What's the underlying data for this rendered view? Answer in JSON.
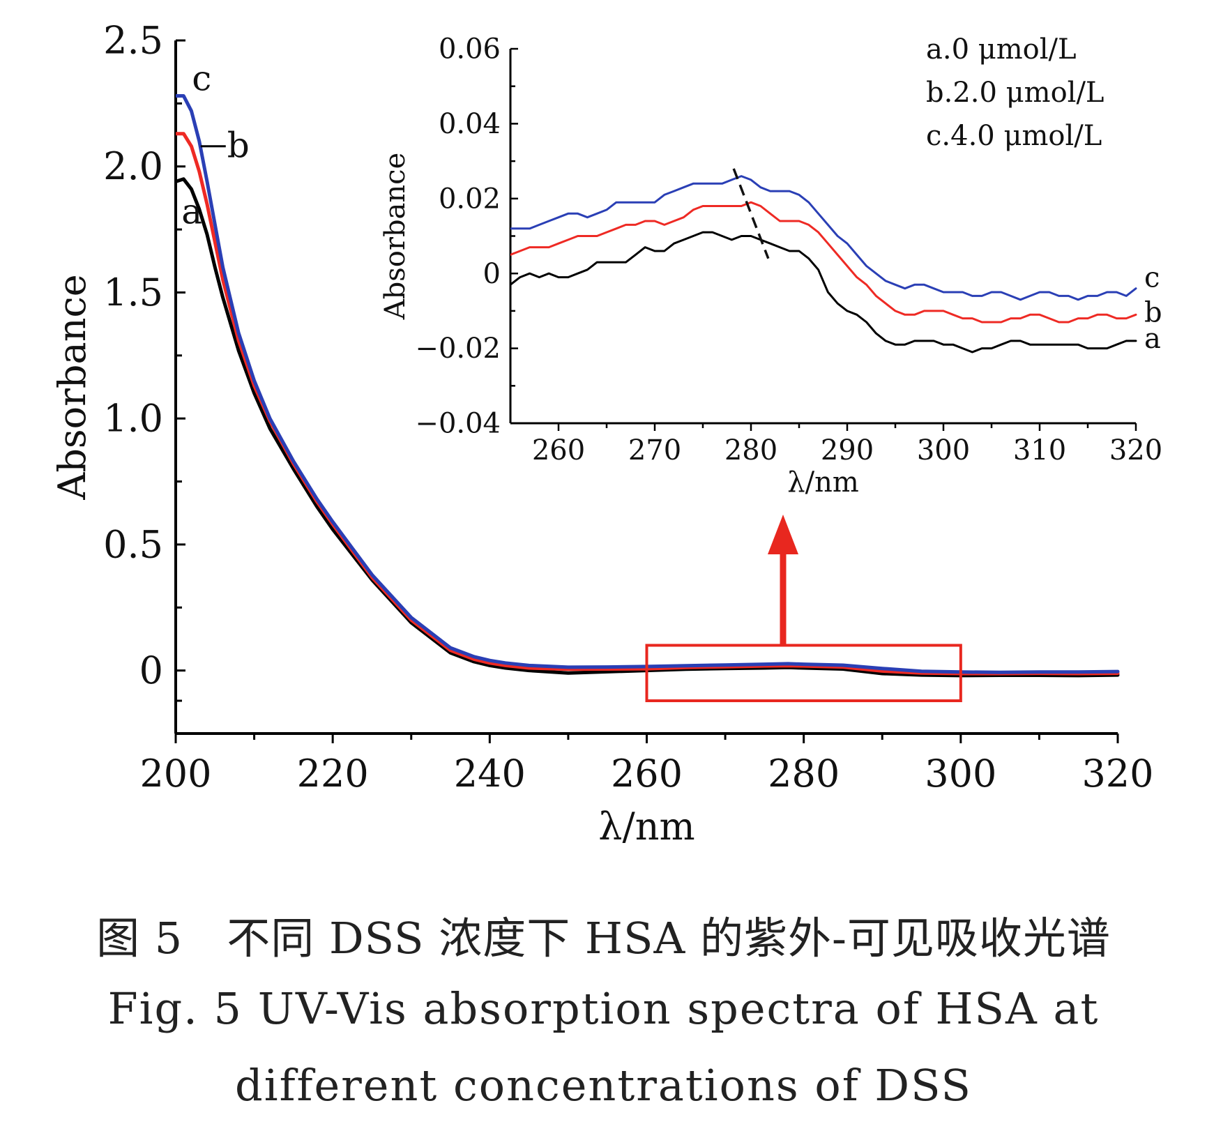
{
  "caption": {
    "cn": "图 5　不同 DSS 浓度下 HSA 的紫外-可见吸收光谱",
    "en_line1": "Fig. 5  UV-Vis absorption spectra of HSA at",
    "en_line2": "different concentrations of DSS"
  },
  "colors": {
    "a": "#000000",
    "b": "#ee2a24",
    "c": "#2a3fb5",
    "highlight": "#e8271f"
  },
  "chart_data": [
    {
      "id": "main",
      "type": "line",
      "xlabel": "λ/nm",
      "ylabel": "Absorbance",
      "xlim": [
        200,
        320
      ],
      "ylim": [
        -0.25,
        2.5
      ],
      "xticks": [
        200,
        220,
        240,
        260,
        280,
        300,
        320
      ],
      "yticks": [
        0,
        0.5,
        1.0,
        1.5,
        2.0,
        2.5
      ],
      "ytick_labels": [
        "0",
        "0.5",
        "1.0",
        "1.5",
        "2.0",
        "2.5"
      ],
      "highlight_box": {
        "x": [
          260,
          300
        ],
        "y": [
          -0.12,
          0.1
        ]
      },
      "series": [
        {
          "name": "a",
          "x": [
            200,
            201,
            202,
            203,
            204,
            205,
            206,
            208,
            210,
            212,
            215,
            218,
            220,
            225,
            230,
            235,
            238,
            240,
            242,
            245,
            250,
            255,
            260,
            265,
            270,
            275,
            278,
            280,
            285,
            290,
            295,
            300,
            305,
            310,
            315,
            320
          ],
          "y": [
            1.94,
            1.95,
            1.91,
            1.83,
            1.73,
            1.6,
            1.48,
            1.27,
            1.1,
            0.96,
            0.8,
            0.65,
            0.56,
            0.36,
            0.19,
            0.07,
            0.035,
            0.02,
            0.01,
            0.0,
            -0.01,
            -0.005,
            0.0,
            0.005,
            0.008,
            0.01,
            0.012,
            0.01,
            0.006,
            -0.012,
            -0.018,
            -0.02,
            -0.019,
            -0.019,
            -0.02,
            -0.018
          ]
        },
        {
          "name": "b",
          "x": [
            200,
            201,
            202,
            203,
            204,
            205,
            206,
            208,
            210,
            212,
            215,
            218,
            220,
            225,
            230,
            235,
            238,
            240,
            242,
            245,
            250,
            255,
            260,
            265,
            270,
            275,
            278,
            280,
            285,
            290,
            295,
            300,
            305,
            310,
            315,
            320
          ],
          "y": [
            2.13,
            2.13,
            2.08,
            1.98,
            1.85,
            1.7,
            1.55,
            1.31,
            1.13,
            0.99,
            0.82,
            0.67,
            0.58,
            0.37,
            0.2,
            0.08,
            0.045,
            0.03,
            0.02,
            0.01,
            0.005,
            0.006,
            0.007,
            0.012,
            0.015,
            0.018,
            0.019,
            0.018,
            0.014,
            -0.002,
            -0.01,
            -0.012,
            -0.012,
            -0.011,
            -0.012,
            -0.011
          ]
        },
        {
          "name": "c",
          "x": [
            200,
            201,
            202,
            203,
            204,
            205,
            206,
            208,
            210,
            212,
            215,
            218,
            220,
            225,
            230,
            235,
            238,
            240,
            242,
            245,
            250,
            255,
            260,
            265,
            270,
            275,
            278,
            280,
            285,
            290,
            295,
            300,
            305,
            310,
            315,
            320
          ],
          "y": [
            2.28,
            2.28,
            2.22,
            2.1,
            1.94,
            1.77,
            1.6,
            1.34,
            1.15,
            1.0,
            0.83,
            0.68,
            0.59,
            0.38,
            0.21,
            0.09,
            0.055,
            0.04,
            0.03,
            0.02,
            0.013,
            0.014,
            0.016,
            0.019,
            0.022,
            0.025,
            0.027,
            0.025,
            0.021,
            0.008,
            -0.003,
            -0.006,
            -0.007,
            -0.006,
            -0.006,
            -0.004
          ]
        }
      ],
      "annotations": [
        {
          "text": "c",
          "target": "c",
          "x": 201,
          "y": 2.28
        },
        {
          "text": "b",
          "target": "b",
          "x": 203,
          "y": 2.13
        },
        {
          "text": "a",
          "target": "a",
          "x": 201,
          "y": 1.94
        }
      ]
    },
    {
      "id": "inset",
      "type": "line",
      "xlabel": "λ/nm",
      "ylabel": "Absorbance",
      "xlim": [
        255,
        320
      ],
      "ylim": [
        -0.04,
        0.06
      ],
      "xticks": [
        260,
        270,
        280,
        290,
        300,
        310,
        320
      ],
      "yticks": [
        -0.04,
        -0.02,
        0,
        0.02,
        0.04,
        0.06
      ],
      "ytick_labels": [
        "−0.04",
        "−0.02",
        "0",
        "0.02",
        "0.04",
        "0.06"
      ],
      "legend": [
        "a.0 μmol/L",
        "b.2.0 μmol/L",
        "c.4.0 μmol/L"
      ],
      "legend_placement": "top-right",
      "dashed_line": {
        "x": [
          278.2,
          281.8
        ],
        "y": [
          0.028,
          0.004
        ]
      },
      "series": [
        {
          "name": "a",
          "x": [
            255,
            256,
            257,
            258,
            259,
            260,
            261,
            262,
            263,
            264,
            265,
            266,
            267,
            268,
            269,
            270,
            271,
            272,
            273,
            274,
            275,
            276,
            277,
            278,
            279,
            280,
            281,
            282,
            283,
            284,
            285,
            286,
            287,
            288,
            289,
            290,
            291,
            292,
            293,
            294,
            295,
            296,
            297,
            298,
            299,
            300,
            301,
            302,
            303,
            304,
            305,
            306,
            307,
            308,
            309,
            310,
            311,
            312,
            313,
            314,
            315,
            316,
            317,
            318,
            319,
            320
          ],
          "y": [
            -0.003,
            -0.001,
            0.0,
            -0.001,
            0.0,
            -0.001,
            -0.001,
            0.0,
            0.001,
            0.003,
            0.003,
            0.003,
            0.003,
            0.005,
            0.007,
            0.006,
            0.006,
            0.008,
            0.009,
            0.01,
            0.011,
            0.011,
            0.01,
            0.009,
            0.01,
            0.01,
            0.009,
            0.008,
            0.007,
            0.006,
            0.006,
            0.004,
            0.001,
            -0.005,
            -0.008,
            -0.01,
            -0.011,
            -0.013,
            -0.016,
            -0.018,
            -0.019,
            -0.019,
            -0.018,
            -0.018,
            -0.018,
            -0.019,
            -0.019,
            -0.02,
            -0.021,
            -0.02,
            -0.02,
            -0.019,
            -0.018,
            -0.018,
            -0.019,
            -0.019,
            -0.019,
            -0.019,
            -0.019,
            -0.019,
            -0.02,
            -0.02,
            -0.02,
            -0.019,
            -0.018,
            -0.018
          ]
        },
        {
          "name": "b",
          "x": [
            255,
            256,
            257,
            258,
            259,
            260,
            261,
            262,
            263,
            264,
            265,
            266,
            267,
            268,
            269,
            270,
            271,
            272,
            273,
            274,
            275,
            276,
            277,
            278,
            279,
            280,
            281,
            282,
            283,
            284,
            285,
            286,
            287,
            288,
            289,
            290,
            291,
            292,
            293,
            294,
            295,
            296,
            297,
            298,
            299,
            300,
            301,
            302,
            303,
            304,
            305,
            306,
            307,
            308,
            309,
            310,
            311,
            312,
            313,
            314,
            315,
            316,
            317,
            318,
            319,
            320
          ],
          "y": [
            0.005,
            0.006,
            0.007,
            0.007,
            0.007,
            0.008,
            0.009,
            0.01,
            0.01,
            0.01,
            0.011,
            0.012,
            0.013,
            0.013,
            0.014,
            0.014,
            0.013,
            0.014,
            0.015,
            0.017,
            0.018,
            0.018,
            0.018,
            0.018,
            0.018,
            0.019,
            0.018,
            0.016,
            0.014,
            0.014,
            0.014,
            0.013,
            0.011,
            0.008,
            0.005,
            0.002,
            -0.001,
            -0.003,
            -0.006,
            -0.008,
            -0.01,
            -0.011,
            -0.011,
            -0.01,
            -0.01,
            -0.01,
            -0.011,
            -0.012,
            -0.012,
            -0.013,
            -0.013,
            -0.013,
            -0.012,
            -0.012,
            -0.011,
            -0.011,
            -0.012,
            -0.013,
            -0.013,
            -0.012,
            -0.012,
            -0.011,
            -0.011,
            -0.012,
            -0.012,
            -0.011
          ]
        },
        {
          "name": "c",
          "x": [
            255,
            256,
            257,
            258,
            259,
            260,
            261,
            262,
            263,
            264,
            265,
            266,
            267,
            268,
            269,
            270,
            271,
            272,
            273,
            274,
            275,
            276,
            277,
            278,
            279,
            280,
            281,
            282,
            283,
            284,
            285,
            286,
            287,
            288,
            289,
            290,
            291,
            292,
            293,
            294,
            295,
            296,
            297,
            298,
            299,
            300,
            301,
            302,
            303,
            304,
            305,
            306,
            307,
            308,
            309,
            310,
            311,
            312,
            313,
            314,
            315,
            316,
            317,
            318,
            319,
            320
          ],
          "y": [
            0.012,
            0.012,
            0.012,
            0.013,
            0.014,
            0.015,
            0.016,
            0.016,
            0.015,
            0.016,
            0.017,
            0.019,
            0.019,
            0.019,
            0.019,
            0.019,
            0.021,
            0.022,
            0.023,
            0.024,
            0.024,
            0.024,
            0.024,
            0.025,
            0.026,
            0.025,
            0.023,
            0.022,
            0.022,
            0.022,
            0.021,
            0.019,
            0.016,
            0.013,
            0.01,
            0.008,
            0.005,
            0.002,
            0.0,
            -0.002,
            -0.003,
            -0.004,
            -0.003,
            -0.003,
            -0.004,
            -0.005,
            -0.005,
            -0.005,
            -0.006,
            -0.006,
            -0.005,
            -0.005,
            -0.006,
            -0.007,
            -0.006,
            -0.005,
            -0.005,
            -0.006,
            -0.006,
            -0.007,
            -0.006,
            -0.006,
            -0.005,
            -0.005,
            -0.006,
            -0.004
          ]
        }
      ],
      "annotations": [
        {
          "text": "c",
          "target": "c",
          "x": 320,
          "y": -0.004
        },
        {
          "text": "b",
          "target": "b",
          "x": 320,
          "y": -0.011
        },
        {
          "text": "a",
          "target": "a",
          "x": 320,
          "y": -0.018
        }
      ]
    }
  ]
}
